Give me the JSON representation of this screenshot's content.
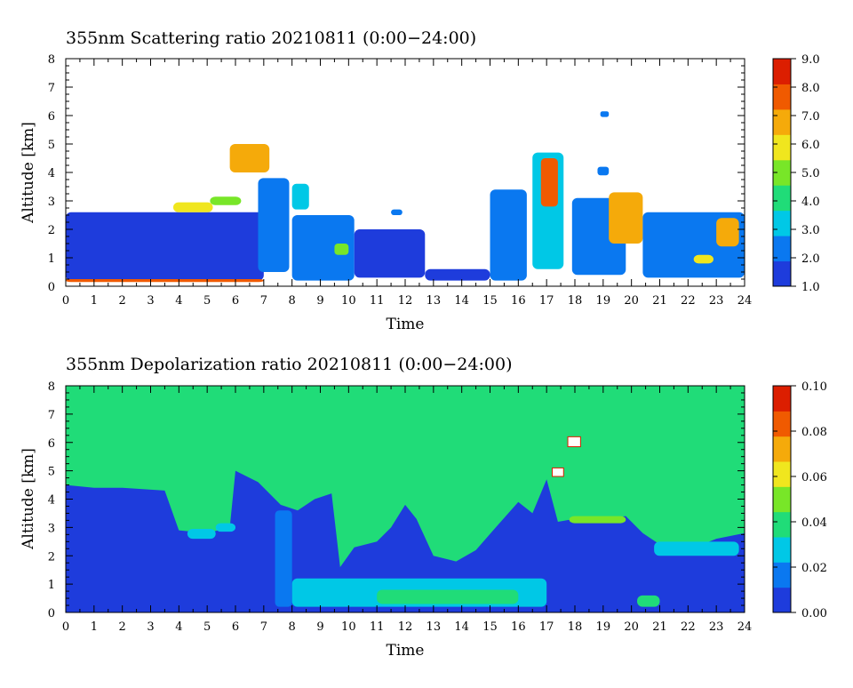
{
  "chart_data": [
    {
      "type": "heatmap",
      "title": "355nm Scattering ratio  20210811 (0:00−24:00)",
      "xlabel": "Time",
      "ylabel": "Altitude [km]",
      "xlim": [
        0,
        24
      ],
      "ylim": [
        0,
        8
      ],
      "xticks": [
        "0",
        "1",
        "2",
        "3",
        "4",
        "5",
        "6",
        "7",
        "8",
        "9",
        "10",
        "11",
        "12",
        "13",
        "14",
        "15",
        "16",
        "17",
        "18",
        "19",
        "20",
        "21",
        "22",
        "23",
        "24"
      ],
      "yticks": [
        "0",
        "1",
        "2",
        "3",
        "4",
        "5",
        "6",
        "7",
        "8"
      ],
      "colorbar": {
        "min": 1.0,
        "max": 9.0,
        "ticks": [
          "1.0",
          "2.0",
          "3.0",
          "4.0",
          "5.0",
          "6.0",
          "7.0",
          "8.0",
          "9.0"
        ],
        "colors": [
          "#1e3cdc",
          "#0a78f0",
          "#00c8e6",
          "#20dc78",
          "#78e628",
          "#f0e61e",
          "#f5aa0a",
          "#f05a00",
          "#dc1e00"
        ]
      },
      "regions": [
        {
          "t0": 0.0,
          "t1": 7.0,
          "z0": 0.2,
          "z1": 2.6,
          "value": 1.8
        },
        {
          "t0": 0.0,
          "t1": 7.0,
          "z0": 0.15,
          "z1": 0.25,
          "value": 7.5
        },
        {
          "t0": 3.8,
          "t1": 5.2,
          "z0": 2.6,
          "z1": 2.95,
          "value": 5.5
        },
        {
          "t0": 5.1,
          "t1": 6.2,
          "z0": 2.85,
          "z1": 3.15,
          "value": 5.0
        },
        {
          "t0": 5.8,
          "t1": 7.2,
          "z0": 4.0,
          "z1": 5.0,
          "value": 6.5
        },
        {
          "t0": 6.8,
          "t1": 7.9,
          "z0": 0.5,
          "z1": 3.8,
          "value": 2.6
        },
        {
          "t0": 8.0,
          "t1": 8.6,
          "z0": 2.7,
          "z1": 3.6,
          "value": 3.0
        },
        {
          "t0": 8.0,
          "t1": 10.2,
          "z0": 0.2,
          "z1": 2.5,
          "value": 1.9
        },
        {
          "t0": 9.5,
          "t1": 10.0,
          "z0": 1.1,
          "z1": 1.5,
          "value": 5.0
        },
        {
          "t0": 10.2,
          "t1": 12.7,
          "z0": 0.3,
          "z1": 2.0,
          "value": 1.7
        },
        {
          "t0": 12.7,
          "t1": 15.0,
          "z0": 0.2,
          "z1": 0.6,
          "value": 1.6
        },
        {
          "t0": 15.0,
          "t1": 16.3,
          "z0": 0.2,
          "z1": 3.4,
          "value": 2.1
        },
        {
          "t0": 16.5,
          "t1": 17.6,
          "z0": 0.6,
          "z1": 4.7,
          "value": 3.2
        },
        {
          "t0": 16.8,
          "t1": 17.4,
          "z0": 2.8,
          "z1": 4.5,
          "value": 8.0
        },
        {
          "t0": 17.9,
          "t1": 19.8,
          "z0": 0.4,
          "z1": 3.1,
          "value": 1.9
        },
        {
          "t0": 19.2,
          "t1": 20.4,
          "z0": 1.5,
          "z1": 3.3,
          "value": 6.5
        },
        {
          "t0": 20.4,
          "t1": 24.0,
          "z0": 0.3,
          "z1": 2.6,
          "value": 2.5
        },
        {
          "t0": 22.2,
          "t1": 22.9,
          "z0": 0.8,
          "z1": 1.1,
          "value": 6.0
        },
        {
          "t0": 23.0,
          "t1": 23.8,
          "z0": 1.4,
          "z1": 2.4,
          "value": 7.0
        },
        {
          "t0": 18.9,
          "t1": 19.2,
          "z0": 5.95,
          "z1": 6.15,
          "value": 2.2
        },
        {
          "t0": 18.8,
          "t1": 19.2,
          "z0": 3.9,
          "z1": 4.2,
          "value": 2.3
        },
        {
          "t0": 11.5,
          "t1": 11.9,
          "z0": 2.5,
          "z1": 2.7,
          "value": 2.0
        }
      ]
    },
    {
      "type": "heatmap",
      "title": "355nm Depolarization ratio  20210811 (0:00−24:00)",
      "xlabel": "Time",
      "ylabel": "Altitude [km]",
      "xlim": [
        0,
        24
      ],
      "ylim": [
        0,
        8
      ],
      "xticks": [
        "0",
        "1",
        "2",
        "3",
        "4",
        "5",
        "6",
        "7",
        "8",
        "9",
        "10",
        "11",
        "12",
        "13",
        "14",
        "15",
        "16",
        "17",
        "18",
        "19",
        "20",
        "21",
        "22",
        "23",
        "24"
      ],
      "yticks": [
        "0",
        "1",
        "2",
        "3",
        "4",
        "5",
        "6",
        "7",
        "8"
      ],
      "background_value": 0.038,
      "colorbar": {
        "min": 0.0,
        "max": 0.1,
        "ticks": [
          "0.00",
          "0.02",
          "0.04",
          "0.06",
          "0.08",
          "0.10"
        ],
        "colors": [
          "#1e3cdc",
          "#0a78f0",
          "#00c8e6",
          "#20dc78",
          "#78e628",
          "#f0e61e",
          "#f5aa0a",
          "#f05a00",
          "#dc1e00"
        ]
      },
      "profile_top": [
        [
          0,
          4.5
        ],
        [
          1,
          4.4
        ],
        [
          2,
          4.4
        ],
        [
          3.5,
          4.3
        ],
        [
          4,
          2.9
        ],
        [
          5,
          2.8
        ],
        [
          5.8,
          3.0
        ],
        [
          6,
          5.0
        ],
        [
          6.8,
          4.6
        ],
        [
          7.2,
          4.2
        ],
        [
          7.6,
          3.8
        ],
        [
          8.2,
          3.6
        ],
        [
          8.8,
          4.0
        ],
        [
          9.4,
          4.2
        ],
        [
          9.7,
          1.6
        ],
        [
          10.2,
          2.3
        ],
        [
          11,
          2.5
        ],
        [
          11.5,
          3.0
        ],
        [
          12,
          3.8
        ],
        [
          12.4,
          3.3
        ],
        [
          13,
          2.0
        ],
        [
          13.8,
          1.8
        ],
        [
          14.5,
          2.2
        ],
        [
          15.2,
          3.0
        ],
        [
          16,
          3.9
        ],
        [
          16.5,
          3.5
        ],
        [
          17,
          4.7
        ],
        [
          17.4,
          3.2
        ],
        [
          18,
          3.3
        ],
        [
          19,
          3.3
        ],
        [
          19.8,
          3.4
        ],
        [
          20.4,
          2.8
        ],
        [
          21,
          2.4
        ],
        [
          22,
          2.2
        ],
        [
          23,
          2.6
        ],
        [
          24,
          2.8
        ]
      ],
      "regions": [
        {
          "t0": 0.0,
          "t1": 24.0,
          "z0": 0.0,
          "z1": 0.15,
          "value": 0.01
        },
        {
          "t0": 8.0,
          "t1": 17.0,
          "z0": 0.2,
          "z1": 1.2,
          "value": 0.03
        },
        {
          "t0": 11.0,
          "t1": 16.0,
          "z0": 0.3,
          "z1": 0.8,
          "value": 0.037
        },
        {
          "t0": 4.3,
          "t1": 5.3,
          "z0": 2.6,
          "z1": 2.95,
          "value": 0.028
        },
        {
          "t0": 5.3,
          "t1": 6.0,
          "z0": 2.85,
          "z1": 3.15,
          "value": 0.03
        },
        {
          "t0": 17.8,
          "t1": 19.8,
          "z0": 3.15,
          "z1": 3.4,
          "value": 0.045
        },
        {
          "t0": 20.2,
          "t1": 21.0,
          "z0": 0.2,
          "z1": 0.6,
          "value": 0.04
        },
        {
          "t0": 20.8,
          "t1": 23.8,
          "z0": 2.0,
          "z1": 2.5,
          "value": 0.025
        },
        {
          "t0": 7.4,
          "t1": 8.0,
          "z0": 0.2,
          "z1": 3.6,
          "value": 0.022
        }
      ],
      "white_patches": [
        {
          "t0": 17.75,
          "t1": 18.2,
          "z0": 5.85,
          "z1": 6.2
        },
        {
          "t0": 17.2,
          "t1": 17.6,
          "z0": 4.8,
          "z1": 5.1
        }
      ]
    }
  ]
}
